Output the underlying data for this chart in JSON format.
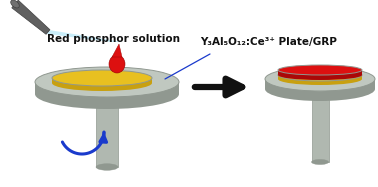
{
  "bg_color": "#ffffff",
  "plate_color_top": "#c0c8c0",
  "plate_color_side": "#909890",
  "plate_color_dark": "#808880",
  "stem_color": "#b0b8b0",
  "yellow_color": "#e8c020",
  "yellow_side": "#c8a010",
  "red_color": "#dd1010",
  "red_side": "#aa0808",
  "arrow_color": "#111111",
  "rotate_arrow_color": "#1a3acc",
  "laser_color": "#b8e8f8",
  "laser_body_color": "#606060",
  "laser_body_dark": "#404040",
  "drop_color": "#dd1010",
  "line_color": "#1a3acc",
  "label_red_phosphor": "Red phosphor solution",
  "label_plate": "Y₃Al₅O₁₂:Ce³⁺ Plate/GRP",
  "label_fontsize": 7.5,
  "label_bold": true
}
